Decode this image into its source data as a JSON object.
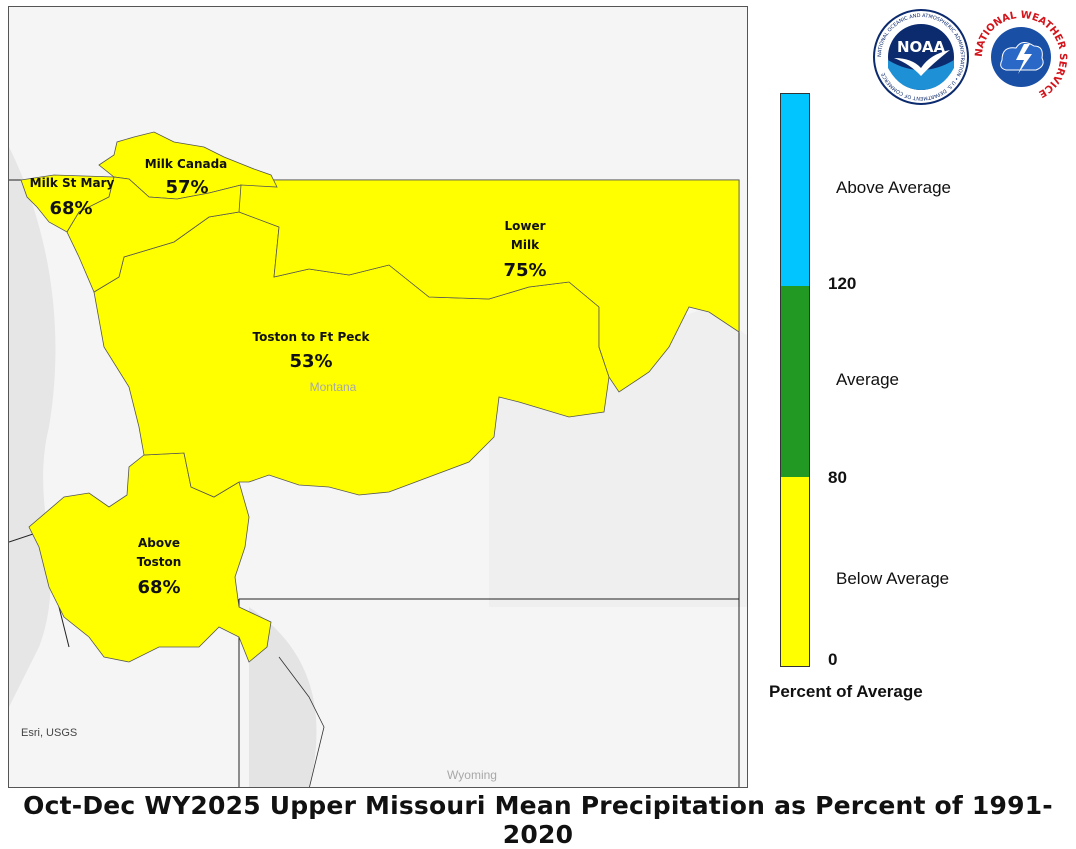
{
  "map": {
    "basins": [
      {
        "name": "Milk Canada",
        "percent": "57%"
      },
      {
        "name": "Milk St Mary",
        "percent": "68%"
      },
      {
        "name": "Lower\nMilk",
        "name_line1": "Lower",
        "name_line2": "Milk",
        "percent": "75%"
      },
      {
        "name": "Toston to Ft Peck",
        "percent": "53%"
      },
      {
        "name": "Above\nToston",
        "name_line1": "Above",
        "name_line2": "Toston",
        "percent": "68%"
      }
    ],
    "places": {
      "state1": "Montana",
      "state2": "Wyoming"
    },
    "attribution": "Esri, USGS",
    "fill_color": "#ffff00"
  },
  "legend": {
    "title": "Percent of Average",
    "categories": [
      {
        "label": "Above Average",
        "color": "#00c5ff"
      },
      {
        "label": "Average",
        "color": "#229922"
      },
      {
        "label": "Below Average",
        "color": "#ffff00"
      }
    ],
    "ticks": [
      "120",
      "80",
      "0"
    ]
  },
  "logos": {
    "noaa_text": "NOAA",
    "noaa_ring": "NATIONAL OCEANIC AND ATMOSPHERIC ADMINISTRATION • U.S. DEPARTMENT OF COMMERCE",
    "nws_ring": "NATIONAL WEATHER SERVICE"
  },
  "title": "Oct-Dec WY2025 Upper Missouri Mean Precipitation as Percent of 1991-2020"
}
